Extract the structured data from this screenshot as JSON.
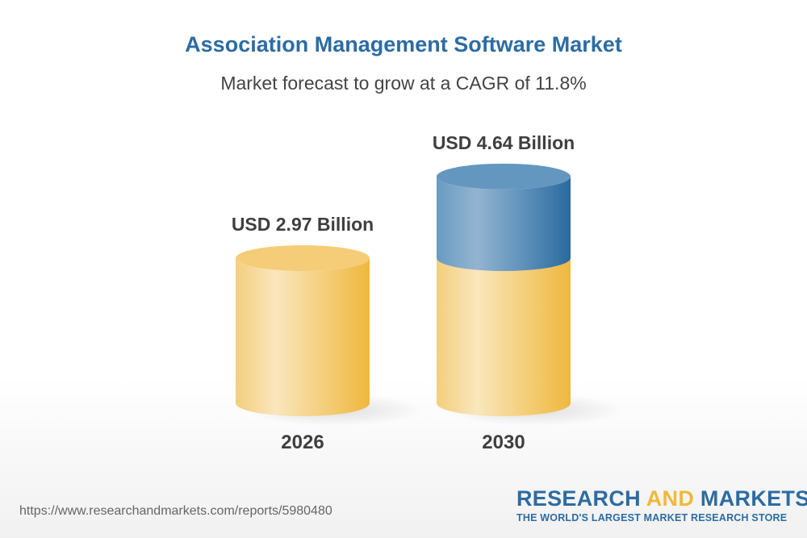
{
  "chart_data": {
    "type": "bar",
    "style": "3d-cylinder",
    "title": "Association Management Software Market",
    "subtitle": "Market forecast to grow at a CAGR of 11.8%",
    "categories": [
      "2026",
      "2030"
    ],
    "values": [
      2.97,
      4.64
    ],
    "unit": "USD Billion",
    "data_labels": [
      "USD 2.97 Billion",
      "USD 4.64 Billion"
    ],
    "colors": {
      "base": "#f3c45e",
      "growth": "#4f86b5",
      "title": "#2c6ca3"
    }
  },
  "footer": {
    "url": "https://www.researchandmarkets.com/reports/5980480",
    "logo_part1": "RESEARCH ",
    "logo_part2": "AND",
    "logo_part3": " MARKETS",
    "logo_tagline": "THE WORLD'S LARGEST MARKET RESEARCH STORE"
  }
}
